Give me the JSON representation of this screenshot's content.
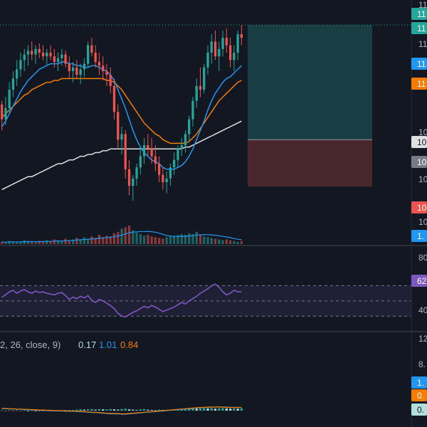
{
  "colors": {
    "background": "#131722",
    "pane_divider": "#2a2e39",
    "up": "#26a69a",
    "down": "#ef5350",
    "ma_fast": "#2196f3",
    "ma_mid": "#f57c00",
    "ma_slow": "#e0e0e0",
    "rsi_line": "#7e57c2",
    "rsi_band": "rgba(126,87,194,0.12)",
    "target_zone": "rgba(38,166,154,0.28)",
    "stop_zone": "rgba(239,83,80,0.25)",
    "macd_label": "#b2b5be",
    "macd_value": "#b2dfdb",
    "signal_value": "#2196f3",
    "hist_value": "#f57c00"
  },
  "price_axis": {
    "tags": [
      {
        "text": "11",
        "bg": "#26a69a",
        "fg": "#ffffff"
      },
      {
        "text": "11",
        "bg": "#26a69a",
        "fg": "#ffffff"
      },
      {
        "text": "11",
        "bg": "#2196f3",
        "fg": "#ffffff"
      },
      {
        "text": "11",
        "bg": "#f57c00",
        "fg": "#ffffff"
      },
      {
        "text": "10",
        "bg": "#e0e0e0",
        "fg": "#131722"
      },
      {
        "text": "10",
        "bg": "#787b86",
        "fg": "#ffffff"
      },
      {
        "text": "10",
        "bg": "#ef5350",
        "fg": "#ffffff"
      },
      {
        "text": "1.",
        "bg": "#2196f3",
        "fg": "#ffffff"
      }
    ],
    "labels": [
      "11",
      "11",
      "10",
      "10",
      "10"
    ]
  },
  "rsi_axis": {
    "top_label": "80",
    "value_tag": "62",
    "bottom_label": "40"
  },
  "macd_legend": {
    "params": "2, 26, close, 9)",
    "macd": "0.17",
    "signal": "1.01",
    "hist": "0.84"
  },
  "macd_axis": {
    "labels": [
      "12",
      "8."
    ],
    "tags": [
      {
        "text": "1.",
        "bg": "#2196f3",
        "fg": "#ffffff"
      },
      {
        "text": "0.",
        "bg": "#f57c00",
        "fg": "#ffffff"
      },
      {
        "text": "0.",
        "bg": "#b2dfdb",
        "fg": "#131722"
      }
    ]
  },
  "chart_data": [
    {
      "type": "candlestick",
      "candles": [
        [
          52,
          54,
          38,
          44
        ],
        [
          44,
          56,
          41,
          50
        ],
        [
          50,
          64,
          47,
          60
        ],
        [
          60,
          70,
          56,
          66
        ],
        [
          66,
          76,
          62,
          71
        ],
        [
          71,
          80,
          67,
          76
        ],
        [
          76,
          82,
          70,
          79
        ],
        [
          79,
          84,
          73,
          81
        ],
        [
          81,
          86,
          76,
          79
        ],
        [
          79,
          84,
          74,
          82
        ],
        [
          82,
          85,
          77,
          80
        ],
        [
          80,
          84,
          76,
          78
        ],
        [
          78,
          82,
          73,
          80
        ],
        [
          80,
          84,
          76,
          78
        ],
        [
          78,
          82,
          72,
          75
        ],
        [
          75,
          80,
          70,
          77
        ],
        [
          77,
          82,
          73,
          79
        ],
        [
          79,
          81,
          72,
          74
        ],
        [
          74,
          78,
          66,
          70
        ],
        [
          70,
          75,
          64,
          72
        ],
        [
          72,
          76,
          66,
          68
        ],
        [
          68,
          74,
          63,
          71
        ],
        [
          71,
          77,
          67,
          74
        ],
        [
          74,
          86,
          72,
          84
        ],
        [
          84,
          88,
          78,
          80
        ],
        [
          80,
          84,
          72,
          75
        ],
        [
          75,
          80,
          68,
          73
        ],
        [
          73,
          78,
          65,
          70
        ],
        [
          70,
          74,
          62,
          68
        ],
        [
          68,
          72,
          58,
          62
        ],
        [
          62,
          66,
          44,
          48
        ],
        [
          48,
          52,
          28,
          33
        ],
        [
          33,
          40,
          25,
          36
        ],
        [
          36,
          38,
          12,
          17
        ],
        [
          17,
          22,
          3,
          8
        ],
        [
          8,
          14,
          0,
          12
        ],
        [
          12,
          20,
          8,
          18
        ],
        [
          18,
          28,
          14,
          24
        ],
        [
          24,
          34,
          20,
          30
        ],
        [
          30,
          36,
          24,
          28
        ],
        [
          28,
          34,
          20,
          24
        ],
        [
          24,
          30,
          16,
          20
        ],
        [
          20,
          24,
          10,
          14
        ],
        [
          14,
          18,
          6,
          10
        ],
        [
          10,
          16,
          4,
          12
        ],
        [
          12,
          20,
          8,
          18
        ],
        [
          18,
          26,
          14,
          22
        ],
        [
          22,
          30,
          18,
          28
        ],
        [
          28,
          34,
          24,
          30
        ],
        [
          30,
          38,
          26,
          36
        ],
        [
          36,
          46,
          32,
          44
        ],
        [
          44,
          56,
          40,
          54
        ],
        [
          54,
          66,
          50,
          62
        ],
        [
          62,
          72,
          56,
          60
        ],
        [
          60,
          74,
          58,
          72
        ],
        [
          72,
          84,
          68,
          80
        ],
        [
          80,
          90,
          74,
          86
        ],
        [
          86,
          92,
          76,
          78
        ],
        [
          78,
          86,
          70,
          82
        ],
        [
          82,
          92,
          78,
          88
        ],
        [
          88,
          93,
          80,
          84
        ],
        [
          84,
          88,
          72,
          76
        ],
        [
          76,
          84,
          70,
          80
        ],
        [
          80,
          92,
          76,
          90
        ],
        [
          90,
          95,
          84,
          88
        ]
      ],
      "ma_fast": [
        40,
        43,
        47,
        51,
        55,
        59,
        62,
        65,
        67,
        69,
        71,
        72,
        73,
        74,
        74,
        74,
        75,
        75,
        74,
        74,
        73,
        73,
        72,
        72,
        73,
        73,
        72,
        71,
        70,
        68,
        65,
        60,
        55,
        50,
        44,
        38,
        33,
        29,
        26,
        24,
        22,
        21,
        20,
        18,
        17,
        17,
        17,
        18,
        19,
        21,
        24,
        28,
        33,
        38,
        43,
        49,
        54,
        58,
        61,
        64,
        66,
        67,
        69,
        71,
        73
      ],
      "ma_mid": [
        45,
        47,
        49,
        51,
        53,
        55,
        57,
        58,
        60,
        61,
        62,
        63,
        64,
        64,
        65,
        65,
        66,
        66,
        66,
        66,
        66,
        66,
        66,
        66,
        66,
        66,
        66,
        66,
        65,
        65,
        64,
        62,
        60,
        57,
        54,
        51,
        48,
        45,
        42,
        40,
        38,
        36,
        35,
        33,
        32,
        31,
        31,
        31,
        31,
        31,
        32,
        34,
        36,
        39,
        42,
        45,
        48,
        51,
        54,
        56,
        58,
        60,
        62,
        64,
        65
      ],
      "ma_slow": [
        6,
        7,
        8,
        9,
        10,
        11,
        12,
        13,
        13,
        14,
        15,
        16,
        17,
        18,
        19,
        20,
        20,
        21,
        22,
        22,
        23,
        24,
        24,
        25,
        25,
        26,
        26,
        27,
        27,
        28,
        28,
        28,
        28,
        28,
        28,
        28,
        28,
        28,
        28,
        28,
        28,
        28,
        28,
        28,
        28,
        28,
        28,
        28,
        28,
        29,
        29,
        30,
        31,
        32,
        33,
        34,
        35,
        36,
        37,
        38,
        39,
        40,
        41,
        42,
        43
      ],
      "volume": [
        3,
        2,
        4,
        3,
        2,
        3,
        5,
        4,
        3,
        2,
        4,
        3,
        5,
        4,
        6,
        5,
        4,
        7,
        5,
        6,
        8,
        6,
        9,
        7,
        10,
        8,
        12,
        9,
        11,
        10,
        14,
        16,
        20,
        22,
        24,
        18,
        15,
        13,
        11,
        12,
        10,
        9,
        8,
        7,
        9,
        10,
        11,
        12,
        13,
        12,
        14,
        13,
        16,
        12,
        10,
        9,
        8,
        7,
        6,
        5,
        6,
        5,
        4,
        3,
        4
      ],
      "target_level": 95,
      "entry_level": 33,
      "stop_level": 13
    },
    {
      "type": "line",
      "name": "RSI",
      "ylim": [
        20,
        90
      ],
      "levels": [
        70,
        50,
        30
      ],
      "values": [
        55,
        58,
        62,
        64,
        60,
        63,
        65,
        62,
        60,
        63,
        61,
        62,
        60,
        59,
        58,
        60,
        61,
        57,
        52,
        55,
        53,
        56,
        54,
        57,
        51,
        48,
        52,
        50,
        47,
        44,
        40,
        34,
        30,
        29,
        32,
        35,
        37,
        40,
        43,
        41,
        44,
        42,
        39,
        36,
        38,
        40,
        42,
        45,
        48,
        46,
        50,
        53,
        56,
        60,
        63,
        66,
        70,
        72,
        68,
        62,
        58,
        60,
        64,
        62,
        62
      ]
    },
    {
      "type": "bar",
      "name": "MACD",
      "macd": [
        0.6,
        0.6,
        0.5,
        0.5,
        0.4,
        0.4,
        0.3,
        0.3,
        0.2,
        0.2,
        0.1,
        0.1,
        0.0,
        0.0,
        -0.1,
        -0.1,
        -0.1,
        -0.2,
        -0.2,
        -0.2,
        -0.3,
        -0.3,
        -0.4,
        -0.5,
        -0.6,
        -0.6,
        -0.7,
        -0.8,
        -0.9,
        -1.0,
        -1.0,
        -1.0,
        -1.1,
        -1.1,
        -1.0,
        -0.9,
        -0.8,
        -0.7,
        -0.6,
        -0.5,
        -0.4,
        -0.3,
        -0.2,
        -0.1,
        0.0,
        0.1,
        0.2,
        0.3,
        0.4,
        0.5,
        0.6,
        0.7,
        0.8,
        0.9,
        1.0,
        1.0,
        1.1,
        1.1,
        1.2,
        1.1,
        1.1,
        1.0,
        1.0,
        1.0,
        1.0
      ],
      "signal": [
        0.7,
        0.7,
        0.6,
        0.6,
        0.5,
        0.5,
        0.4,
        0.4,
        0.3,
        0.3,
        0.2,
        0.2,
        0.1,
        0.1,
        0.0,
        0.0,
        0.0,
        -0.1,
        -0.1,
        -0.1,
        -0.2,
        -0.2,
        -0.3,
        -0.4,
        -0.5,
        -0.5,
        -0.6,
        -0.7,
        -0.8,
        -0.9,
        -0.9,
        -0.9,
        -1.0,
        -1.0,
        -0.9,
        -0.8,
        -0.7,
        -0.6,
        -0.5,
        -0.4,
        -0.3,
        -0.2,
        -0.1,
        0.0,
        0.1,
        0.2,
        0.3,
        0.4,
        0.5,
        0.6,
        0.7,
        0.8,
        0.9,
        1.0,
        1.0,
        1.1,
        1.1,
        1.1,
        1.1,
        1.1,
        1.0,
        1.0,
        1.0,
        1.0,
        1.0
      ],
      "hist": [
        0.1,
        -0.1,
        0.1,
        -0.1,
        0.1,
        -0.1,
        0.1,
        0.0,
        0.1,
        0.0,
        -0.1,
        0.0,
        0.1,
        -0.1,
        0.0,
        0.1,
        -0.1,
        0.2,
        0.2,
        0.1,
        0.3,
        0.4,
        0.3,
        0.4,
        0.5,
        0.3,
        0.5,
        0.4,
        0.4,
        0.5,
        0.4,
        0.3,
        0.5,
        0.6,
        0.4,
        0.3,
        0.2,
        0.4,
        0.5,
        0.3,
        0.2,
        0.1,
        0.3,
        0.2,
        0.1,
        0.2,
        0.3,
        0.4,
        0.5,
        0.6,
        0.6,
        0.7,
        0.6,
        0.7,
        0.8,
        0.7,
        0.8,
        0.6,
        0.7,
        0.8,
        0.7,
        0.6,
        0.7,
        0.6,
        0.7
      ]
    }
  ]
}
